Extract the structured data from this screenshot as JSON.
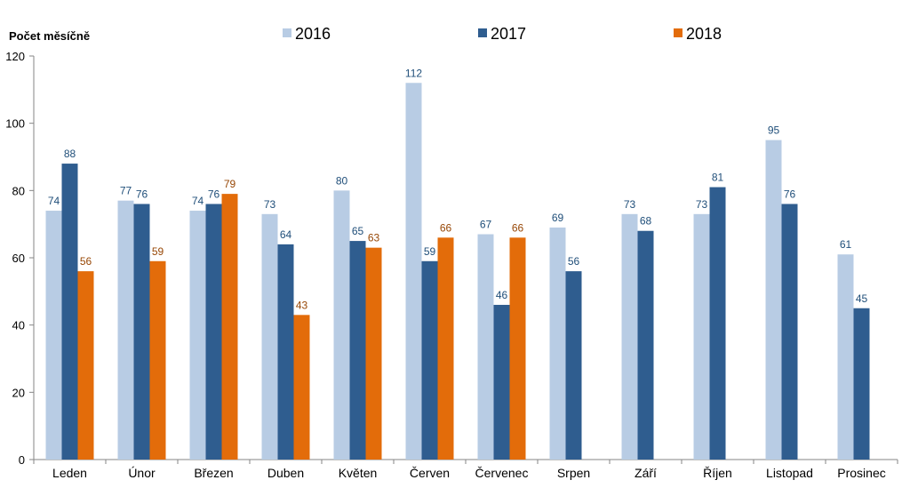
{
  "chart_data": {
    "type": "bar",
    "ylabel": "Počet měsíčně",
    "xlabel": "",
    "ylim": [
      0,
      120
    ],
    "yticks": [
      0,
      20,
      40,
      60,
      80,
      100,
      120
    ],
    "grid": false,
    "legend_position": "top",
    "categories": [
      "Leden",
      "Únor",
      "Březen",
      "Duben",
      "Květen",
      "Červen",
      "Červenec",
      "Srpen",
      "Září",
      "Říjen",
      "Listopad",
      "Prosinec"
    ],
    "series": [
      {
        "name": "2016",
        "color": "#b8cce4",
        "label_color": "#1f4e79",
        "values": [
          74,
          77,
          74,
          73,
          80,
          112,
          67,
          69,
          73,
          73,
          95,
          61
        ]
      },
      {
        "name": "2017",
        "color": "#2f5d8f",
        "label_color": "#1f4e79",
        "values": [
          88,
          76,
          76,
          64,
          65,
          59,
          46,
          56,
          68,
          81,
          76,
          45
        ]
      },
      {
        "name": "2018",
        "color": "#e36c0a",
        "label_color": "#974706",
        "values": [
          56,
          59,
          79,
          43,
          63,
          66,
          66,
          null,
          null,
          null,
          null,
          null
        ]
      }
    ]
  }
}
